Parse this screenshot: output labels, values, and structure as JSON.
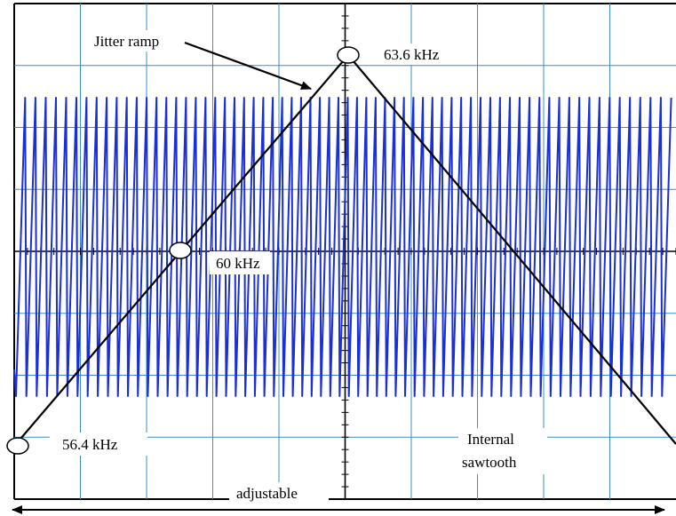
{
  "labels": {
    "jitter_ramp": "Jitter ramp",
    "freq_max": "63.6 kHz",
    "freq_center": "60 kHz",
    "freq_min": "56.4 kHz",
    "internal_line1": "Internal",
    "internal_line2": "sawtooth",
    "adjustable": "adjustable"
  },
  "colors": {
    "grid": "#3a8fc9",
    "trace": "#1a2fd6",
    "ramp": "#000000",
    "background": "#ffffff"
  },
  "grid": {
    "divisions_x": 10,
    "divisions_y": 8,
    "minor_ticks_per_division": 5
  },
  "sawtooth": {
    "cycles": 67,
    "direction": "rising-then-fast-fall"
  }
}
